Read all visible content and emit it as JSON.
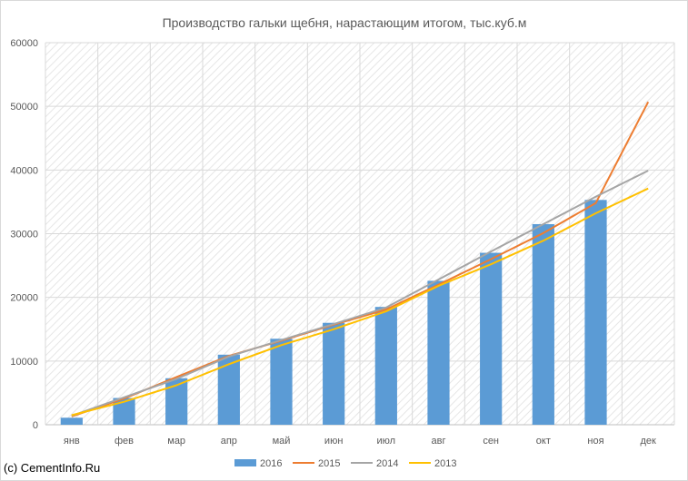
{
  "chart_data": {
    "type": "bar",
    "title": "Производство гальки щебня, нарастающим итогом, тыс.куб.м",
    "xlabel": "",
    "ylabel": "",
    "categories": [
      "янв",
      "фев",
      "мар",
      "апр",
      "май",
      "июн",
      "июл",
      "авг",
      "сен",
      "окт",
      "ноя",
      "дек"
    ],
    "ylim": [
      0,
      60000
    ],
    "yticks": [
      "0",
      "10000",
      "20000",
      "30000",
      "40000",
      "50000",
      "60000"
    ],
    "grid": true,
    "legend_position": "bottom",
    "bar_series": {
      "name": "2016",
      "color": "#5b9bd5",
      "values": [
        1100,
        4200,
        7300,
        11000,
        13500,
        16000,
        18500,
        22600,
        27000,
        31500,
        35300,
        null
      ]
    },
    "line_series": [
      {
        "name": "2015",
        "color": "#ed7d31",
        "values": [
          1300,
          4100,
          7500,
          10800,
          13200,
          15700,
          18100,
          22000,
          26000,
          30100,
          34800,
          50700
        ]
      },
      {
        "name": "2014",
        "color": "#a5a5a5",
        "values": [
          1400,
          4300,
          7200,
          10700,
          13300,
          15800,
          18400,
          22800,
          27200,
          31500,
          35800,
          39900
        ]
      },
      {
        "name": "2013",
        "color": "#ffc000",
        "values": [
          1500,
          3600,
          6200,
          9500,
          12500,
          15000,
          17800,
          21800,
          25200,
          28900,
          33200,
          37100
        ]
      }
    ]
  },
  "credit": "(c) CementInfo.Ru"
}
